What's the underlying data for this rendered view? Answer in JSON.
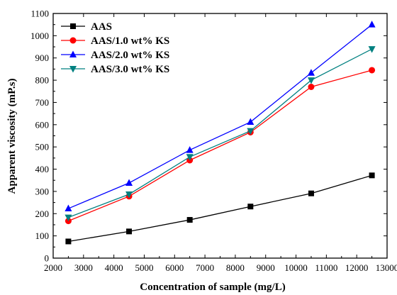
{
  "chart_data": {
    "type": "line",
    "xlabel": "Concentration of sample (mg/L)",
    "ylabel": "Apparent viscosity (mP.s)",
    "xlim": [
      2000,
      13000
    ],
    "ylim": [
      0,
      1100
    ],
    "xticks": [
      2000,
      3000,
      4000,
      5000,
      6000,
      7000,
      8000,
      9000,
      10000,
      11000,
      12000,
      13000
    ],
    "yticks": [
      0,
      100,
      200,
      300,
      400,
      500,
      600,
      700,
      800,
      900,
      1000,
      1100
    ],
    "x": [
      2500,
      4500,
      6500,
      8500,
      10500,
      12500
    ],
    "legend_position": "top-left",
    "grid": false,
    "series": [
      {
        "name": "AAS",
        "color": "#000000",
        "marker": "square",
        "values": [
          75,
          120,
          172,
          232,
          291,
          372
        ]
      },
      {
        "name": "AAS/1.0 wt% KS",
        "color": "#ff0000",
        "marker": "circle",
        "values": [
          167,
          278,
          440,
          566,
          770,
          845
        ]
      },
      {
        "name": "AAS/2.0 wt% KS",
        "color": "#0000ff",
        "marker": "triangle-up",
        "values": [
          223,
          338,
          486,
          612,
          833,
          1050
        ]
      },
      {
        "name": "AAS/3.0 wt% KS",
        "color": "#008080",
        "marker": "triangle-down",
        "values": [
          183,
          287,
          455,
          572,
          800,
          940
        ]
      }
    ]
  }
}
